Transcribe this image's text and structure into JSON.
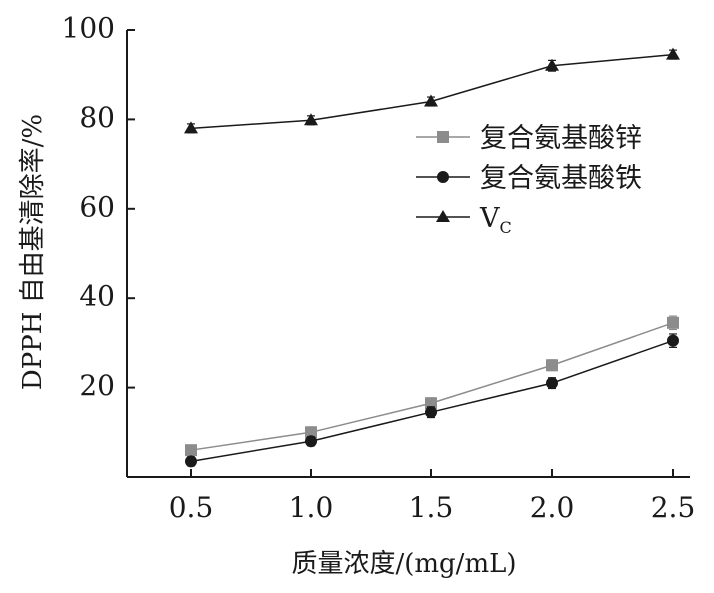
{
  "chart_data": {
    "type": "line",
    "xlabel": "质量浓度/(mg/mL)",
    "ylabel": "DPPH 自由基清除率/%",
    "x": [
      0.5,
      1.0,
      1.5,
      2.0,
      2.5
    ],
    "x_tick_labels": [
      "0.5",
      "1.0",
      "1.5",
      "2.0",
      "2.5"
    ],
    "y_ticks": [
      20,
      40,
      60,
      80,
      100
    ],
    "y_tick_labels": [
      "20",
      "40",
      "60",
      "80",
      "100"
    ],
    "ylim": [
      0,
      100
    ],
    "grid": false,
    "legend_position": "right, middle-upper",
    "series": [
      {
        "name": "复合氨基酸锌",
        "marker": "square",
        "color": "#8c8c8c",
        "values": [
          6,
          10,
          16.5,
          25,
          34.5
        ],
        "errors": [
          1,
          1.2,
          1.2,
          1.2,
          1.5
        ]
      },
      {
        "name": "复合氨基酸铁",
        "marker": "circle",
        "color": "#1a1a1a",
        "values": [
          3.5,
          8,
          14.5,
          21,
          30.5
        ],
        "errors": [
          1,
          1,
          1.2,
          1.2,
          1.5
        ]
      },
      {
        "name": "VC",
        "name_main": "V",
        "name_sub": "C",
        "marker": "triangle",
        "color": "#1a1a1a",
        "values": [
          78,
          79.8,
          84,
          92,
          94.5
        ],
        "errors": [
          1,
          1,
          1,
          1.2,
          1
        ]
      }
    ]
  }
}
